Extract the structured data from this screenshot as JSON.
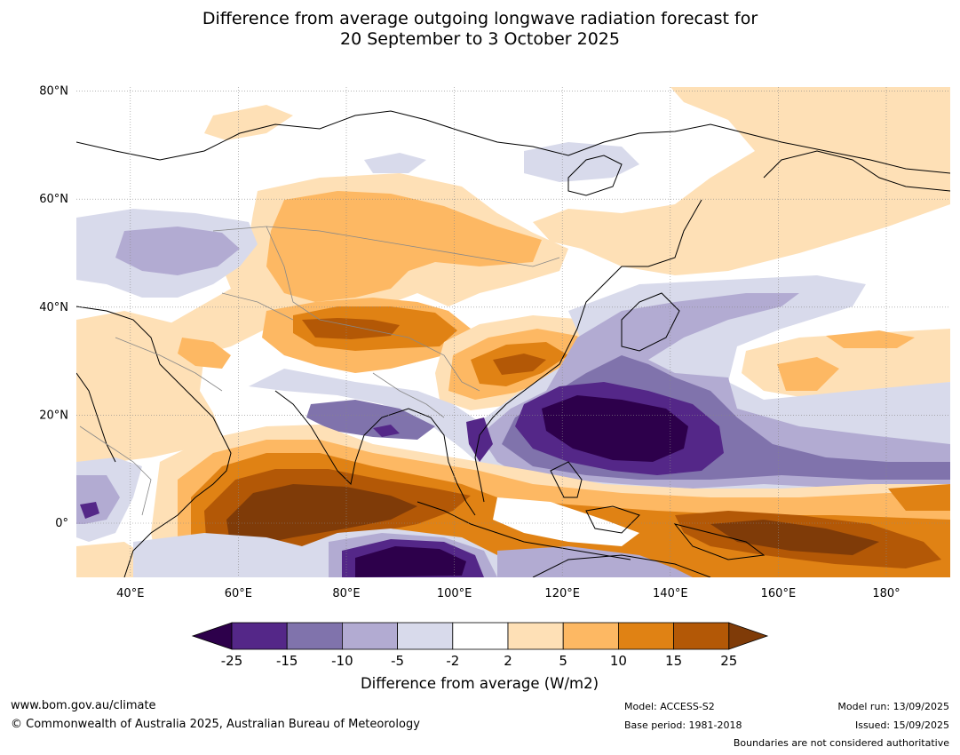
{
  "title": {
    "line1": "Difference from average outgoing longwave radiation forecast for",
    "line2": "20 September to 3 October 2025"
  },
  "map": {
    "lat_labels": [
      "80°N",
      "60°N",
      "40°N",
      "20°N",
      "0°"
    ],
    "lon_labels": [
      "40°E",
      "60°E",
      "80°E",
      "100°E",
      "120°E",
      "140°E",
      "160°E",
      "180°"
    ],
    "gridlines": true
  },
  "colorbar": {
    "title": "Difference from average (W/m2)",
    "tick_labels": [
      "-25",
      "-15",
      "-10",
      "-5",
      "-2",
      "2",
      "5",
      "10",
      "15",
      "25"
    ],
    "colors": {
      "below_-25": "#2d004b",
      "-25_-15": "#542788",
      "-15_-10": "#8073ac",
      "-10_-5": "#b2abd2",
      "-5_-2": "#d8daeb",
      "-2_2": "#ffffff",
      "2_5": "#fee0b6",
      "5_10": "#fdb863",
      "10_15": "#e08214",
      "15_25": "#b35806",
      "above_25": "#7f3b08"
    }
  },
  "footer": {
    "website": "www.bom.gov.au/climate",
    "copyright": "© Commonwealth of Australia 2025, Australian Bureau of Meteorology",
    "model": "Model: ACCESS-S2",
    "base_period": "Base period: 1981-2018",
    "model_run": "Model run: 13/09/2025",
    "issued": "Issued: 15/09/2025",
    "disclaimer": "Boundaries are not considered authoritative"
  }
}
